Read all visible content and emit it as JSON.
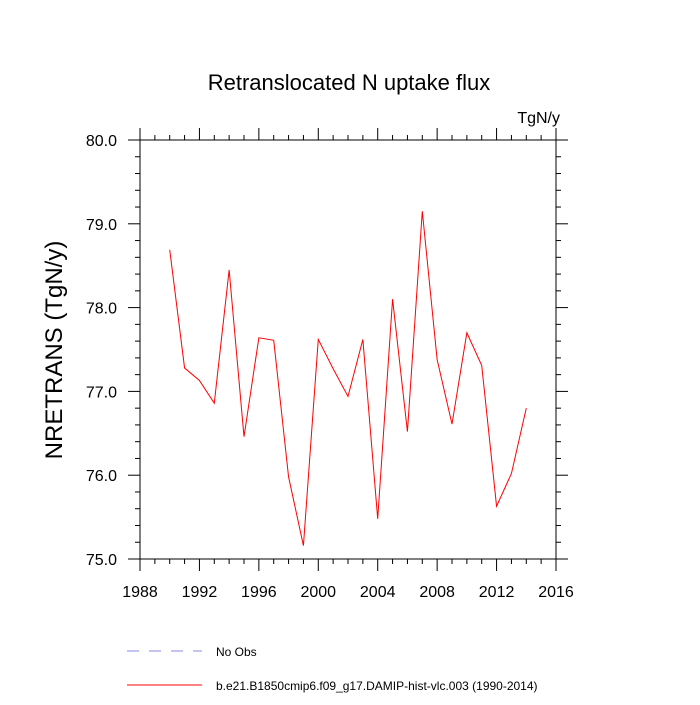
{
  "chart_data": {
    "type": "line",
    "title": "Retranslocated N uptake flux",
    "units_label": "TgN/y",
    "ylabel": "NRETRANS  (TgN/y)",
    "xlabel": "",
    "xlim": [
      1988,
      2016
    ],
    "ylim": [
      75.0,
      80.0
    ],
    "x_ticks": [
      1988,
      1992,
      1996,
      2000,
      2004,
      2008,
      2012,
      2016
    ],
    "y_ticks": [
      75.0,
      76.0,
      77.0,
      78.0,
      79.0,
      80.0
    ],
    "y_tick_labels": [
      "75.0",
      "76.0",
      "77.0",
      "78.0",
      "79.0",
      "80.0"
    ],
    "series": [
      {
        "name": "b.e21.B1850cmip6.f09_g17.DAMIP-hist-vlc.003 (1990-2014)",
        "color": "#ff0000",
        "style": "solid",
        "x": [
          1990,
          1991,
          1992,
          1993,
          1994,
          1995,
          1996,
          1997,
          1998,
          1999,
          2000,
          2001,
          2002,
          2003,
          2004,
          2005,
          2006,
          2007,
          2008,
          2009,
          2010,
          2011,
          2012,
          2013,
          2014
        ],
        "values": [
          78.69,
          77.28,
          77.13,
          76.86,
          78.45,
          76.46,
          77.64,
          77.61,
          75.98,
          75.16,
          77.62,
          77.27,
          76.94,
          77.62,
          75.48,
          78.1,
          76.52,
          79.15,
          77.38,
          76.61,
          77.7,
          77.31,
          75.63,
          76.02,
          76.8
        ]
      }
    ],
    "legend": [
      {
        "label": "No Obs",
        "color": "#8a8ae6",
        "style": "dashed"
      },
      {
        "label": "b.e21.B1850cmip6.f09_g17.DAMIP-hist-vlc.003 (1990-2014)",
        "color": "#ff0000",
        "style": "solid"
      }
    ]
  }
}
